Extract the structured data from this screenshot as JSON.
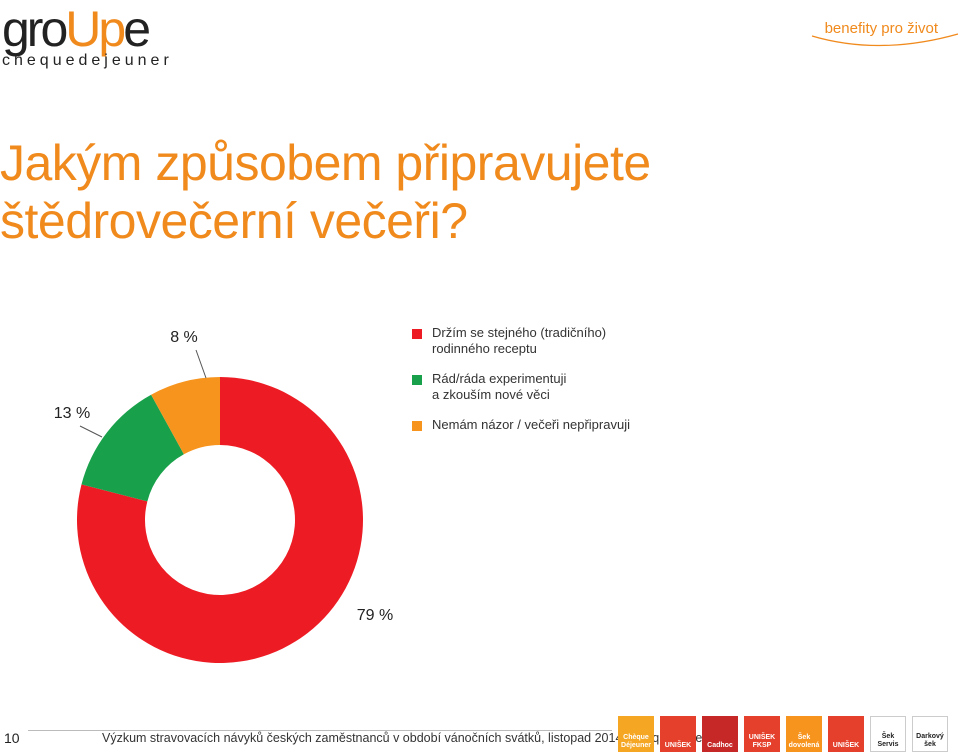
{
  "header": {
    "logo_prefix": "gro",
    "logo_accent": "Up",
    "logo_suffix": "e",
    "logo_sub": "chequedejeuner",
    "tagline": "benefity pro život",
    "accent_color": "#f08a1d"
  },
  "title": {
    "line1": "Jakým způsobem připravujete",
    "line2": "štědrovečerní večeři?"
  },
  "chart_data": {
    "type": "pie",
    "variant": "donut",
    "series": [
      {
        "name": "Držím se stejného (tradičního)\nrodinného receptu",
        "value": 79,
        "label": "79 %",
        "color": "#ed1c24"
      },
      {
        "name": "Rád/ráda experimentuji\na zkouším nové věci",
        "value": 13,
        "label": "13 %",
        "color": "#18a14a"
      },
      {
        "name": "Nemám názor / večeři nepřipravuji",
        "value": 8,
        "label": "8 %",
        "color": "#f7941d"
      }
    ],
    "legend_position": "right"
  },
  "footer": {
    "page_number": "10",
    "source_text": "Výzkum stravovacích návyků českých zaměstnanců v období vánočních svátků, listopad 2014, Chèque Déjeuner"
  },
  "brand_logos": [
    {
      "name": "Chèque Déjeuner",
      "color": "#f5a623"
    },
    {
      "name": "UNIŠEK",
      "color": "#e4402b"
    },
    {
      "name": "Cadhoc",
      "color": "#c62828"
    },
    {
      "name": "UNIŠEK FKSP",
      "color": "#e4402b"
    },
    {
      "name": "Šek dovolená",
      "color": "#f7941d"
    },
    {
      "name": "UNIŠEK",
      "color": "#e4402b"
    },
    {
      "name": "Šek Servis",
      "color": "#ffffff"
    },
    {
      "name": "Darkový šek",
      "color": "#ffffff"
    }
  ]
}
